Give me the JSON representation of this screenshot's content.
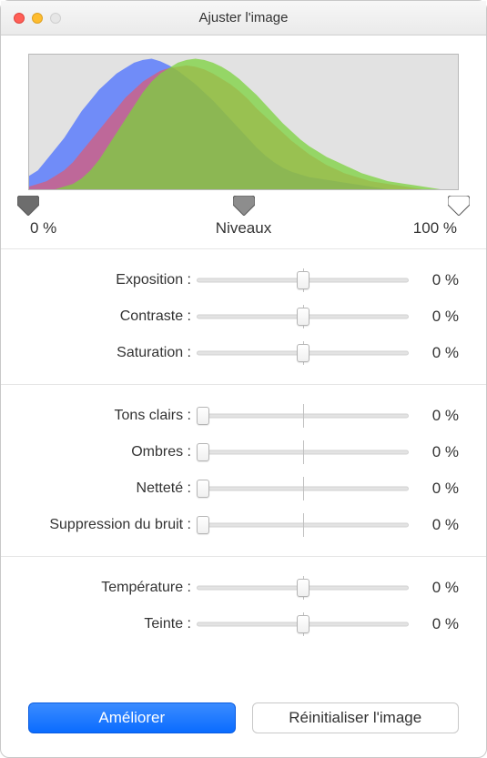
{
  "window": {
    "title": "Ajuster l'image",
    "traffic_colors": {
      "close": "#ff5f57",
      "min": "#febc2e",
      "zoom": "#e6e6e6"
    }
  },
  "histogram": {
    "background": "#e2e2e2",
    "border": "#b8b8b8",
    "channels": {
      "blue": {
        "color": "#4a6fff",
        "opacity": 0.75,
        "values": [
          10,
          14,
          22,
          30,
          38,
          48,
          58,
          66,
          74,
          80,
          86,
          90,
          94,
          96,
          97,
          95,
          92,
          88,
          83,
          78,
          72,
          66,
          59,
          52,
          45,
          38,
          31,
          25,
          20,
          16,
          13,
          11,
          9,
          8,
          7,
          6,
          5,
          4,
          3,
          2,
          1,
          0,
          0,
          0,
          0,
          0,
          0,
          0,
          0,
          0
        ]
      },
      "red": {
        "color": "#ff4a4a",
        "opacity": 0.55,
        "values": [
          2,
          4,
          6,
          10,
          14,
          20,
          28,
          36,
          44,
          52,
          60,
          68,
          74,
          80,
          84,
          88,
          90,
          91,
          92,
          91,
          89,
          86,
          82,
          78,
          73,
          67,
          60,
          54,
          48,
          42,
          36,
          31,
          26,
          22,
          18,
          15,
          12,
          10,
          8,
          6,
          5,
          4,
          3,
          2,
          1,
          0,
          0,
          0,
          0,
          0
        ]
      },
      "green": {
        "color": "#7bd13c",
        "opacity": 0.75,
        "values": [
          0,
          0,
          0,
          0,
          2,
          4,
          8,
          14,
          22,
          32,
          42,
          52,
          62,
          72,
          80,
          86,
          90,
          94,
          96,
          97,
          96,
          94,
          91,
          87,
          82,
          76,
          70,
          63,
          56,
          49,
          43,
          37,
          32,
          28,
          24,
          21,
          18,
          15,
          12,
          10,
          8,
          6,
          5,
          4,
          3,
          2,
          1,
          0,
          0,
          0
        ]
      }
    }
  },
  "levels": {
    "label_center": "Niveaux",
    "label_left": "0 %",
    "label_right": "100 %",
    "handle_positions_pct": [
      0,
      50,
      100
    ],
    "handle_fills": [
      "#6d6d6d",
      "#8d8d8d",
      "#ffffff"
    ]
  },
  "groups": [
    {
      "rows": [
        {
          "label": "Exposition :",
          "value": "0 %",
          "thumb_pct": 50,
          "tick": true
        },
        {
          "label": "Contraste :",
          "value": "0 %",
          "thumb_pct": 50,
          "tick": true
        },
        {
          "label": "Saturation :",
          "value": "0 %",
          "thumb_pct": 50,
          "tick": true
        }
      ]
    },
    {
      "rows": [
        {
          "label": "Tons clairs :",
          "value": "0 %",
          "thumb_pct": 3,
          "tick": true
        },
        {
          "label": "Ombres :",
          "value": "0 %",
          "thumb_pct": 3,
          "tick": true
        },
        {
          "label": "Netteté :",
          "value": "0 %",
          "thumb_pct": 3,
          "tick": true
        },
        {
          "label": "Suppression du bruit :",
          "value": "0 %",
          "thumb_pct": 3,
          "tick": true
        }
      ]
    },
    {
      "rows": [
        {
          "label": "Température :",
          "value": "0 %",
          "thumb_pct": 50,
          "tick": true
        },
        {
          "label": "Teinte :",
          "value": "0 %",
          "thumb_pct": 50,
          "tick": true
        }
      ]
    }
  ],
  "buttons": {
    "primary": "Améliorer",
    "secondary": "Réinitialiser l'image",
    "primary_bg": "#0a6cff",
    "secondary_bg": "#ffffff"
  }
}
